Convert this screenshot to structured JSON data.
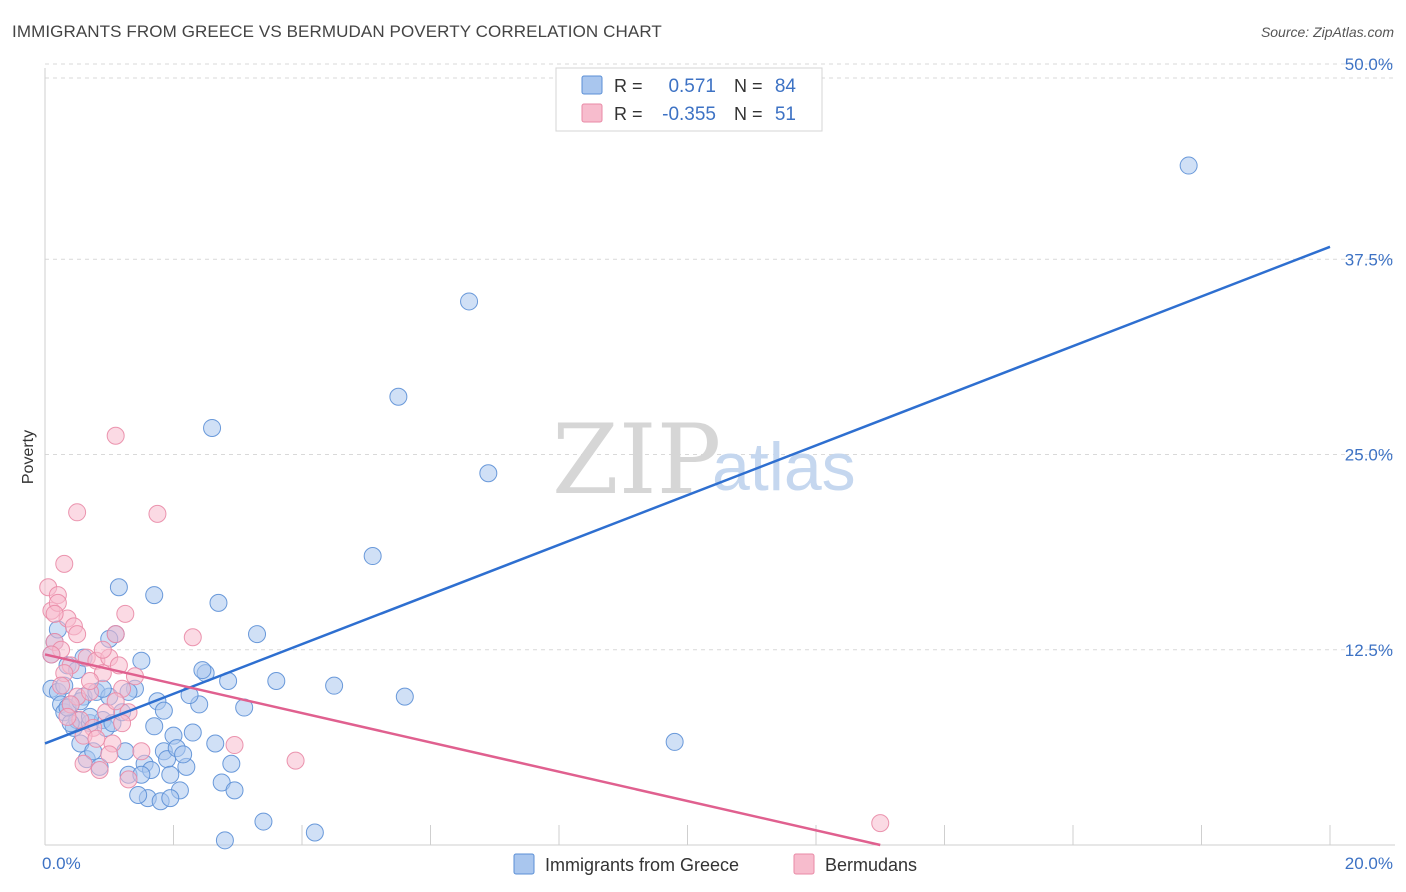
{
  "title": "IMMIGRANTS FROM GREECE VS BERMUDAN POVERTY CORRELATION CHART",
  "source": "Source: ZipAtlas.com",
  "watermark": {
    "zip": "ZIP",
    "atlas": "atlas"
  },
  "colors": {
    "blue_fill": "#a9c6ee",
    "blue_stroke": "#5b8fd6",
    "blue_line": "#2e6fd0",
    "pink_fill": "#f7bccd",
    "pink_stroke": "#e98aa6",
    "pink_line": "#e0608f",
    "tick": "#3d72c4",
    "grid": "#d9d9d9"
  },
  "legend": {
    "r_label": "R =",
    "n_label": "N =",
    "series": [
      {
        "r": "0.571",
        "n": "84"
      },
      {
        "r": "-0.355",
        "n": "51"
      }
    ]
  },
  "bottom_legend": [
    "Immigrants from Greece",
    "Bermudans"
  ],
  "chart_data": {
    "type": "scatter",
    "title": "IMMIGRANTS FROM GREECE VS BERMUDAN POVERTY CORRELATION CHART",
    "xlabel": "",
    "ylabel": "Poverty",
    "xlim": [
      0,
      20
    ],
    "ylim": [
      0,
      51.5
    ],
    "x_tick_labels": [
      "0.0%",
      "20.0%"
    ],
    "y_ticks": [
      12.5,
      25.0,
      37.5,
      50.0
    ],
    "y_tick_labels": [
      "12.5%",
      "25.0%",
      "37.5%",
      "50.0%"
    ],
    "grid": true,
    "legend_position": "top-center",
    "series": [
      {
        "name": "Immigrants from Greece",
        "r": 0.571,
        "n": 84,
        "trend": {
          "x": [
            0.0,
            20.0
          ],
          "y": [
            6.5,
            38.3
          ]
        },
        "points": [
          [
            0.1,
            10.0
          ],
          [
            0.15,
            13.0
          ],
          [
            0.2,
            9.8
          ],
          [
            0.25,
            9.0
          ],
          [
            0.3,
            8.5
          ],
          [
            0.35,
            11.5
          ],
          [
            0.4,
            9.0
          ],
          [
            0.45,
            7.5
          ],
          [
            0.5,
            8.0
          ],
          [
            0.55,
            6.5
          ],
          [
            0.6,
            9.5
          ],
          [
            0.65,
            5.5
          ],
          [
            0.7,
            7.8
          ],
          [
            0.8,
            9.8
          ],
          [
            0.85,
            5.0
          ],
          [
            0.9,
            8.0
          ],
          [
            0.95,
            7.5
          ],
          [
            1.0,
            9.5
          ],
          [
            1.05,
            7.8
          ],
          [
            1.1,
            13.5
          ],
          [
            1.15,
            16.5
          ],
          [
            1.2,
            8.5
          ],
          [
            1.25,
            6.0
          ],
          [
            1.3,
            4.5
          ],
          [
            1.4,
            10.0
          ],
          [
            1.5,
            11.8
          ],
          [
            1.55,
            5.2
          ],
          [
            1.6,
            3.0
          ],
          [
            1.65,
            4.8
          ],
          [
            1.7,
            16.0
          ],
          [
            1.75,
            9.2
          ],
          [
            1.8,
            2.8
          ],
          [
            1.85,
            6.0
          ],
          [
            1.9,
            5.5
          ],
          [
            1.95,
            4.5
          ],
          [
            2.0,
            7.0
          ],
          [
            2.05,
            6.2
          ],
          [
            2.1,
            3.5
          ],
          [
            2.2,
            5.0
          ],
          [
            2.3,
            7.2
          ],
          [
            2.4,
            9.0
          ],
          [
            2.5,
            11.0
          ],
          [
            2.6,
            26.7
          ],
          [
            2.65,
            6.5
          ],
          [
            2.7,
            15.5
          ],
          [
            2.75,
            4.0
          ],
          [
            2.8,
            0.3
          ],
          [
            2.85,
            10.5
          ],
          [
            2.9,
            5.2
          ],
          [
            2.95,
            3.5
          ],
          [
            3.1,
            8.8
          ],
          [
            3.3,
            13.5
          ],
          [
            3.4,
            1.5
          ],
          [
            3.6,
            10.5
          ],
          [
            4.2,
            0.8
          ],
          [
            4.5,
            10.2
          ],
          [
            5.1,
            18.5
          ],
          [
            5.5,
            28.7
          ],
          [
            5.6,
            9.5
          ],
          [
            6.6,
            34.8
          ],
          [
            6.9,
            23.8
          ],
          [
            9.8,
            6.6
          ],
          [
            17.8,
            43.5
          ],
          [
            0.2,
            13.8
          ],
          [
            0.3,
            10.2
          ],
          [
            0.4,
            7.8
          ],
          [
            0.5,
            11.2
          ],
          [
            0.6,
            12.0
          ],
          [
            0.7,
            8.2
          ],
          [
            0.75,
            6.0
          ],
          [
            0.9,
            10.0
          ],
          [
            1.0,
            13.2
          ],
          [
            1.3,
            9.8
          ],
          [
            1.45,
            3.2
          ],
          [
            1.5,
            4.5
          ],
          [
            1.7,
            7.6
          ],
          [
            1.85,
            8.6
          ],
          [
            2.15,
            5.8
          ],
          [
            2.25,
            9.6
          ],
          [
            2.45,
            11.2
          ],
          [
            0.1,
            12.2
          ],
          [
            0.35,
            8.8
          ],
          [
            0.55,
            9.2
          ],
          [
            1.95,
            3.0
          ]
        ]
      },
      {
        "name": "Bermudans",
        "r": -0.355,
        "n": 51,
        "trend": {
          "x": [
            0.0,
            13.0
          ],
          "y": [
            12.2,
            0.0
          ]
        },
        "points": [
          [
            0.05,
            16.5
          ],
          [
            0.1,
            15.0
          ],
          [
            0.15,
            13.0
          ],
          [
            0.2,
            16.0
          ],
          [
            0.25,
            12.5
          ],
          [
            0.3,
            18.0
          ],
          [
            0.35,
            14.5
          ],
          [
            0.4,
            11.5
          ],
          [
            0.45,
            14.0
          ],
          [
            0.5,
            9.5
          ],
          [
            0.55,
            8.0
          ],
          [
            0.6,
            5.2
          ],
          [
            0.65,
            12.0
          ],
          [
            0.7,
            9.8
          ],
          [
            0.75,
            7.5
          ],
          [
            0.8,
            11.8
          ],
          [
            0.85,
            4.8
          ],
          [
            0.9,
            11.0
          ],
          [
            0.95,
            8.5
          ],
          [
            1.0,
            12.0
          ],
          [
            1.05,
            6.5
          ],
          [
            1.1,
            13.5
          ],
          [
            1.15,
            11.5
          ],
          [
            1.2,
            10.0
          ],
          [
            1.25,
            14.8
          ],
          [
            1.3,
            8.5
          ],
          [
            1.1,
            26.2
          ],
          [
            0.5,
            21.3
          ],
          [
            1.75,
            21.2
          ],
          [
            2.3,
            13.3
          ],
          [
            2.95,
            6.4
          ],
          [
            3.9,
            5.4
          ],
          [
            13.0,
            1.4
          ],
          [
            0.1,
            12.2
          ],
          [
            0.2,
            15.5
          ],
          [
            0.3,
            11.0
          ],
          [
            0.4,
            9.0
          ],
          [
            0.5,
            13.5
          ],
          [
            0.6,
            7.0
          ],
          [
            0.7,
            10.5
          ],
          [
            0.8,
            6.8
          ],
          [
            0.9,
            12.5
          ],
          [
            1.0,
            5.8
          ],
          [
            1.1,
            9.2
          ],
          [
            1.2,
            7.8
          ],
          [
            1.3,
            4.2
          ],
          [
            1.4,
            10.8
          ],
          [
            1.5,
            6.0
          ],
          [
            0.15,
            14.8
          ],
          [
            0.25,
            10.2
          ],
          [
            0.35,
            8.2
          ]
        ]
      }
    ]
  }
}
